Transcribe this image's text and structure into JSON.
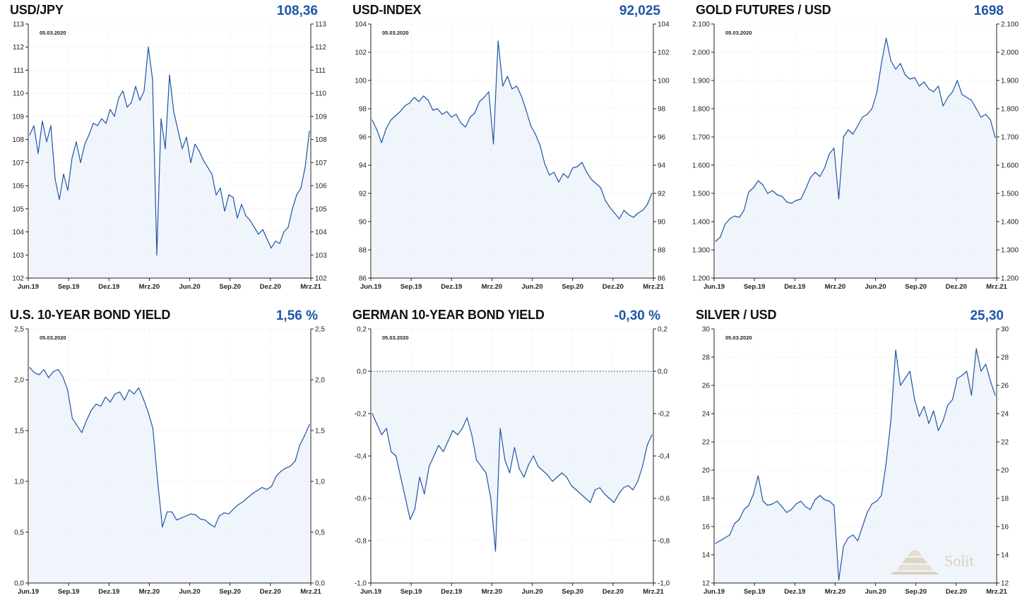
{
  "watermark": {
    "text": "Solit"
  },
  "chart_data": [
    {
      "type": "line",
      "title": "USD/JPY",
      "current_value": "108,36",
      "date_note": "05.03.2020",
      "ylim": [
        102,
        113
      ],
      "yticks": [
        102,
        103,
        104,
        105,
        106,
        107,
        108,
        109,
        110,
        111,
        112,
        113
      ],
      "ytick_labels": [
        "102",
        "103",
        "104",
        "105",
        "106",
        "107",
        "108",
        "109",
        "110",
        "111",
        "112",
        "113"
      ],
      "xticks": [
        "Jun.19",
        "Sep.19",
        "Dez.19",
        "Mrz.20",
        "Jun.20",
        "Sep.20",
        "Dez.20",
        "Mrz.21"
      ],
      "grid": true,
      "color": "#1f56a6",
      "series": [
        {
          "values": [
            108.2,
            108.6,
            107.4,
            108.8,
            107.9,
            108.6,
            106.3,
            105.4,
            106.5,
            105.8,
            107.2,
            107.9,
            107.0,
            107.8,
            108.2,
            108.7,
            108.6,
            108.9,
            108.7,
            109.3,
            109.0,
            109.8,
            110.1,
            109.4,
            109.6,
            110.3,
            109.7,
            110.1,
            112.0,
            110.6,
            103.0,
            108.9,
            107.6,
            110.8,
            109.2,
            108.4,
            107.6,
            108.1,
            107.0,
            107.8,
            107.5,
            107.1,
            106.8,
            106.5,
            105.6,
            105.9,
            104.9,
            105.6,
            105.5,
            104.6,
            105.2,
            104.7,
            104.5,
            104.2,
            103.9,
            104.1,
            103.7,
            103.3,
            103.6,
            103.5,
            104.0,
            104.2,
            105.0,
            105.6,
            105.9,
            106.8,
            108.36
          ]
        }
      ]
    },
    {
      "type": "line",
      "title": "USD-INDEX",
      "current_value": "92,025",
      "date_note": "05.03.2020",
      "ylim": [
        86,
        104
      ],
      "yticks": [
        86,
        88,
        90,
        92,
        94,
        96,
        98,
        100,
        102,
        104
      ],
      "ytick_labels": [
        "86",
        "88",
        "90",
        "92",
        "94",
        "96",
        "98",
        "100",
        "102",
        "104"
      ],
      "xticks": [
        "Jun.19",
        "Sep.19",
        "Dez.19",
        "Mrz.20",
        "Jun.20",
        "Sep.20",
        "Dez.20",
        "Mrz.21"
      ],
      "grid": true,
      "color": "#1f56a6",
      "series": [
        {
          "values": [
            97.2,
            96.5,
            95.6,
            96.6,
            97.2,
            97.5,
            97.8,
            98.2,
            98.4,
            98.8,
            98.5,
            98.9,
            98.6,
            97.9,
            98.0,
            97.6,
            97.8,
            97.4,
            97.6,
            97.0,
            96.7,
            97.4,
            97.7,
            98.5,
            98.8,
            99.2,
            95.5,
            102.8,
            99.6,
            100.3,
            99.4,
            99.6,
            98.9,
            97.9,
            96.8,
            96.2,
            95.4,
            94.1,
            93.3,
            93.5,
            92.8,
            93.4,
            93.1,
            93.8,
            93.9,
            94.2,
            93.5,
            93.0,
            92.7,
            92.4,
            91.5,
            91.0,
            90.6,
            90.2,
            90.8,
            90.5,
            90.3,
            90.6,
            90.8,
            91.2,
            92.025
          ]
        }
      ]
    },
    {
      "type": "line",
      "title": "GOLD FUTURES / USD",
      "current_value": "1698",
      "date_note": "05.03.2020",
      "ylim": [
        1200,
        2100
      ],
      "yticks": [
        1200,
        1300,
        1400,
        1500,
        1600,
        1700,
        1800,
        1900,
        2000,
        2100
      ],
      "ytick_labels": [
        "1.200",
        "1.300",
        "1.400",
        "1.500",
        "1.600",
        "1.700",
        "1.800",
        "1.900",
        "2.000",
        "2.100"
      ],
      "xticks": [
        "Jun.19",
        "Sep.19",
        "Dez.19",
        "Mrz.20",
        "Jun.20",
        "Sep.20",
        "Dez.20",
        "Mrz.21"
      ],
      "grid": true,
      "color": "#1f56a6",
      "series": [
        {
          "values": [
            1330,
            1345,
            1390,
            1410,
            1420,
            1415,
            1440,
            1505,
            1520,
            1545,
            1530,
            1500,
            1510,
            1495,
            1490,
            1470,
            1465,
            1475,
            1480,
            1515,
            1555,
            1575,
            1560,
            1590,
            1640,
            1660,
            1480,
            1700,
            1725,
            1710,
            1740,
            1770,
            1780,
            1800,
            1855,
            1960,
            2050,
            1970,
            1940,
            1960,
            1920,
            1905,
            1910,
            1880,
            1895,
            1870,
            1860,
            1880,
            1810,
            1840,
            1860,
            1900,
            1850,
            1840,
            1830,
            1800,
            1770,
            1780,
            1760,
            1698
          ]
        }
      ]
    },
    {
      "type": "line",
      "title": "U.S. 10-YEAR BOND YIELD",
      "current_value": "1,56 %",
      "date_note": "05.03.2020",
      "ylim": [
        0,
        2.5
      ],
      "yticks": [
        0,
        0.5,
        1.0,
        1.5,
        2.0,
        2.5
      ],
      "ytick_labels": [
        "0,0",
        "0,5",
        "1,0",
        "1,5",
        "2,0",
        "2,5"
      ],
      "xticks": [
        "Jun.19",
        "Sep.19",
        "Dez.19",
        "Mrz.20",
        "Jun.20",
        "Sep.20",
        "Dez.20",
        "Mrz.21"
      ],
      "grid": true,
      "color": "#1f56a6",
      "series": [
        {
          "values": [
            2.12,
            2.07,
            2.05,
            2.1,
            2.02,
            2.08,
            2.1,
            2.03,
            1.9,
            1.62,
            1.55,
            1.48,
            1.6,
            1.7,
            1.76,
            1.74,
            1.83,
            1.78,
            1.86,
            1.88,
            1.8,
            1.9,
            1.86,
            1.92,
            1.81,
            1.68,
            1.52,
            1.0,
            0.55,
            0.7,
            0.7,
            0.62,
            0.64,
            0.66,
            0.68,
            0.67,
            0.63,
            0.62,
            0.58,
            0.55,
            0.66,
            0.69,
            0.68,
            0.73,
            0.77,
            0.8,
            0.84,
            0.88,
            0.91,
            0.94,
            0.92,
            0.95,
            1.05,
            1.1,
            1.13,
            1.15,
            1.2,
            1.36,
            1.45,
            1.56
          ]
        }
      ]
    },
    {
      "type": "line",
      "title": "GERMAN 10-YEAR BOND YIELD",
      "current_value": "-0,30 %",
      "date_note": "05.03.2020",
      "ylim": [
        -1.0,
        0.2
      ],
      "yticks": [
        -1.0,
        -0.8,
        -0.6,
        -0.4,
        -0.2,
        0.0,
        0.2
      ],
      "ytick_labels": [
        "-1,0",
        "-0,8",
        "-0,6",
        "-0,4",
        "-0,2",
        "0,0",
        "0,2"
      ],
      "xticks": [
        "Jun.19",
        "Sep.19",
        "Dez.19",
        "Mrz.20",
        "Jun.20",
        "Sep.20",
        "Dez.20",
        "Mrz.21"
      ],
      "grid": true,
      "reference_line": 0.0,
      "color": "#1f56a6",
      "series": [
        {
          "values": [
            -0.2,
            -0.25,
            -0.3,
            -0.27,
            -0.38,
            -0.4,
            -0.5,
            -0.6,
            -0.7,
            -0.65,
            -0.5,
            -0.58,
            -0.45,
            -0.4,
            -0.35,
            -0.38,
            -0.33,
            -0.28,
            -0.3,
            -0.27,
            -0.22,
            -0.3,
            -0.42,
            -0.45,
            -0.48,
            -0.6,
            -0.85,
            -0.27,
            -0.42,
            -0.48,
            -0.36,
            -0.46,
            -0.5,
            -0.44,
            -0.4,
            -0.45,
            -0.47,
            -0.49,
            -0.52,
            -0.5,
            -0.48,
            -0.5,
            -0.54,
            -0.56,
            -0.58,
            -0.6,
            -0.62,
            -0.56,
            -0.55,
            -0.58,
            -0.6,
            -0.62,
            -0.58,
            -0.55,
            -0.54,
            -0.56,
            -0.52,
            -0.45,
            -0.35,
            -0.3
          ]
        }
      ]
    },
    {
      "type": "line",
      "title": "SILVER / USD",
      "current_value": "25,30",
      "date_note": "05.03.2020",
      "ylim": [
        12,
        30
      ],
      "yticks": [
        12,
        14,
        16,
        18,
        20,
        22,
        24,
        26,
        28,
        30
      ],
      "ytick_labels": [
        "12",
        "14",
        "16",
        "18",
        "20",
        "22",
        "24",
        "26",
        "28",
        "30"
      ],
      "xticks": [
        "Jun.19",
        "Sep.19",
        "Dez.19",
        "Mrz.20",
        "Jun.20",
        "Sep.20",
        "Dez.20",
        "Mrz.21"
      ],
      "grid": true,
      "color": "#1f56a6",
      "series": [
        {
          "values": [
            14.8,
            15.0,
            15.2,
            15.4,
            16.2,
            16.5,
            17.2,
            17.5,
            18.3,
            19.6,
            17.8,
            17.5,
            17.6,
            17.8,
            17.4,
            17.0,
            17.2,
            17.6,
            17.8,
            17.4,
            17.2,
            17.9,
            18.2,
            17.9,
            17.8,
            17.5,
            12.2,
            14.6,
            15.2,
            15.4,
            15.0,
            16.0,
            17.0,
            17.6,
            17.8,
            18.2,
            20.5,
            23.5,
            28.5,
            26.0,
            26.5,
            27.0,
            25.0,
            23.8,
            24.5,
            23.3,
            24.2,
            22.8,
            23.5,
            24.6,
            25.0,
            26.5,
            26.7,
            27.0,
            25.3,
            28.6,
            27.0,
            27.5,
            26.3,
            25.3
          ]
        }
      ]
    }
  ]
}
